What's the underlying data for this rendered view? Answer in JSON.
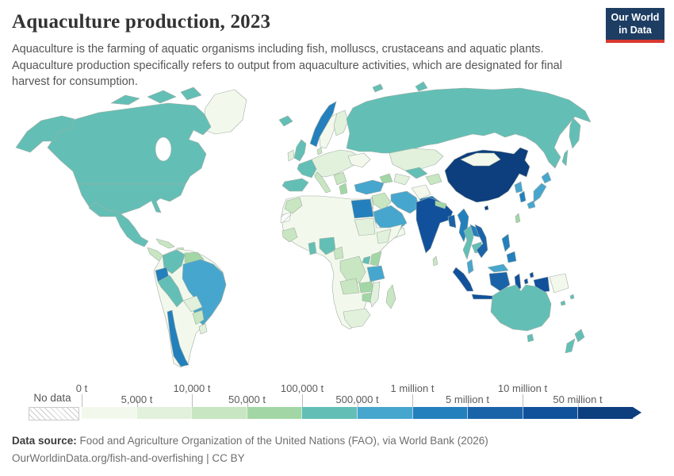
{
  "header": {
    "title": "Aquaculture production, 2023",
    "subtitle": "Aquaculture is the farming of aquatic organisms including fish, molluscs, crustaceans and aquatic plants. Aquaculture production specifically refers to output from aquaculture activities, which are designated for final harvest for consumption.",
    "logo": {
      "line1": "Our World",
      "line2": "in Data"
    }
  },
  "legend": {
    "no_data_label": "No data",
    "unit_labels": [
      "0 t",
      "5,000 t",
      "10,000 t",
      "50,000 t",
      "100,000 t",
      "500,000 t",
      "1 million t",
      "5 million t",
      "10 million t",
      "50 million t"
    ],
    "colors": [
      "#f2f9ec",
      "#e1f1dc",
      "#c8e6c1",
      "#a2d7a5",
      "#63bfb5",
      "#47a6cd",
      "#2380bc",
      "#1a63a8",
      "#11519c",
      "#0d3e7e"
    ]
  },
  "footer": {
    "source_label": "Data source:",
    "source_text": " Food and Agriculture Organization of the United Nations (FAO), via World Bank (2026)",
    "link_text": "OurWorldinData.org/fish-and-overfishing | CC BY"
  },
  "chart_data": {
    "type": "choropleth-map",
    "title": "Aquaculture production",
    "year": "2023",
    "unit": "tonnes",
    "legend_buckets": [
      "0-5,000 t",
      "5,000-10,000 t",
      "10,000-50,000 t",
      "50,000-100,000 t",
      "100,000-500,000 t",
      "500,000-1 million t",
      "1-5 million t",
      "5-10 million t",
      "10-50 million t",
      "over 50 million t"
    ],
    "regions": {
      "greenland": 0,
      "canada": 4,
      "united-states": 4,
      "mexico": 4,
      "central-america": 2,
      "cuba": 2,
      "hispaniola": 2,
      "colombia": 4,
      "venezuela": 3,
      "south-america-other": 0,
      "ecuador": 6,
      "peru": 4,
      "brazil": 5,
      "bolivia": 1,
      "paraguay": 2,
      "uruguay": 1,
      "chile": 6,
      "iceland": 4,
      "united-kingdom": 4,
      "ireland": 1,
      "norway": 6,
      "sweden": 0,
      "finland": 1,
      "europe-mainland": 1,
      "denmark": 2,
      "france": 4,
      "spain": 4,
      "italy": 2,
      "balkans": 2,
      "greece": 3,
      "ukraine": 0,
      "russia": 4,
      "turkey": 5,
      "caucasus": 3,
      "syria-iraq": 2,
      "jordan-israel": 1,
      "saudi-arabia": 5,
      "yemen": 0,
      "iran": 5,
      "kazakhstan": 1,
      "uzbekistan": 4,
      "turkmenistan": 1,
      "afghanistan": 0,
      "pakistan": 6,
      "kyrgyzstan": 2,
      "africa-other": 0,
      "western-sahara": "no-data",
      "morocco": 2,
      "egypt": 6,
      "sudan": 1,
      "ethiopia": 1,
      "senegal-guinea": 2,
      "ghana": 4,
      "nigeria": 4,
      "cameroon": 2,
      "dr-congo": 2,
      "uganda": 4,
      "kenya": 3,
      "tanzania": 5,
      "angola": 2,
      "zambia": 3,
      "zimbabwe": 3,
      "mozambique": 1,
      "madagascar": 2,
      "south-africa": 1,
      "china": 9,
      "hainan-china": 9,
      "mongolia": 0,
      "india": 8,
      "nepal": 3,
      "bangladesh": 7,
      "sri-lanka": 2,
      "myanmar": 6,
      "thailand": 4,
      "laos": 6,
      "cambodia": 4,
      "vietnam": 7,
      "malaysia": 5,
      "indonesia": 8,
      "indonesia-kalimantan": 7,
      "papua-new-guinea": 0,
      "philippines": 6,
      "taiwan": 3,
      "japan": 5,
      "south-korea": 6,
      "north-korea": 5,
      "australia": 4,
      "new-zealand": 4,
      "melanesia": 4
    }
  }
}
